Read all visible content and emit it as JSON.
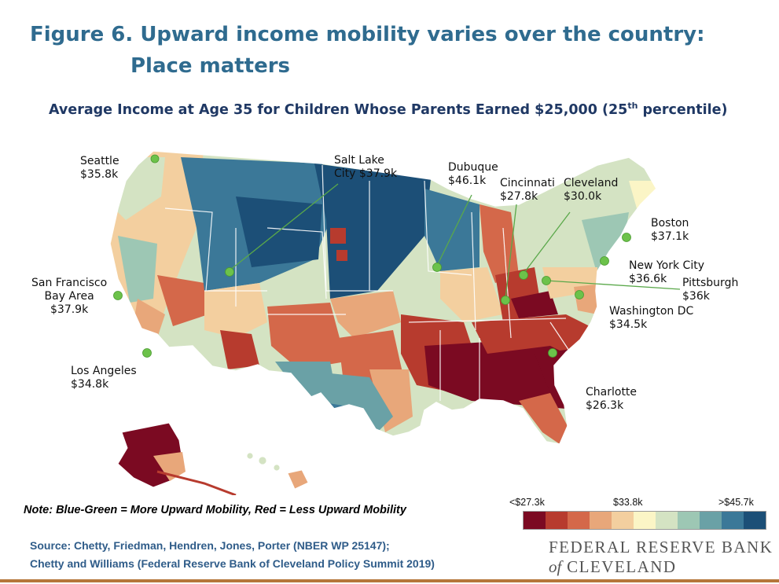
{
  "title": {
    "line1": "Figure 6. Upward income mobility varies over the country:",
    "line2": "Place matters"
  },
  "subtitle": {
    "main": "Average Income at Age 35 for Children Whose Parents Earned $25,000 (25",
    "sup": "th",
    "end": " percentile)"
  },
  "cities": [
    {
      "id": "seattle",
      "label": "Seattle\n$35.8k"
    },
    {
      "id": "salt-lake-city",
      "label": "Salt Lake\nCity $37.9k"
    },
    {
      "id": "dubuque",
      "label": "Dubuque\n$46.1k"
    },
    {
      "id": "cincinnati",
      "label": "Cincinnati\n$27.8k"
    },
    {
      "id": "cleveland",
      "label": "Cleveland\n$30.0k"
    },
    {
      "id": "boston",
      "label": "Boston\n$37.1k"
    },
    {
      "id": "new-york-city",
      "label": "New York City\n$36.6k"
    },
    {
      "id": "pittsburgh",
      "label": "Pittsburgh\n$36k"
    },
    {
      "id": "washington-dc",
      "label": "Washington DC\n$34.5k"
    },
    {
      "id": "san-francisco",
      "label": "San Francisco\nBay Area\n$37.9k"
    },
    {
      "id": "los-angeles",
      "label": "Los Angeles\n$34.8k"
    },
    {
      "id": "charlotte",
      "label": "Charlotte\n$26.3k"
    }
  ],
  "note": "Note: Blue-Green = More Upward Mobility, Red = Less Upward Mobility",
  "legend": {
    "low": "<$27.3k",
    "mid": "$33.8k",
    "high": ">$45.7k",
    "colors": [
      "#7b0a22",
      "#b73b2e",
      "#d4684a",
      "#e8a77a",
      "#f3cf9f",
      "#fbf5c6",
      "#d4e3c3",
      "#9dc7b4",
      "#6aa1a6",
      "#3b7898",
      "#1c4f77"
    ]
  },
  "source": {
    "line1": "Source: Chetty, Friedman, Hendren, Jones, Porter (NBER WP 25147);",
    "line2": "Chetty and Williams (Federal Reserve Bank of Cleveland Policy Summit 2019)"
  },
  "logo": {
    "line1": "FEDERAL RESERVE BANK",
    "of": "of",
    "line2": "CLEVELAND"
  },
  "map_colors": {
    "dark_red": "#7b0a22",
    "red": "#b73b2e",
    "orange": "#d4684a",
    "peach": "#e8a77a",
    "tan": "#f3cf9f",
    "cream": "#fbf5c6",
    "pale_green": "#d4e3c3",
    "sage": "#9dc7b4",
    "teal": "#6aa1a6",
    "blue": "#3b7898",
    "navy": "#1c4f77",
    "marker": "#6cc24a",
    "leader": "#5aa84a"
  }
}
